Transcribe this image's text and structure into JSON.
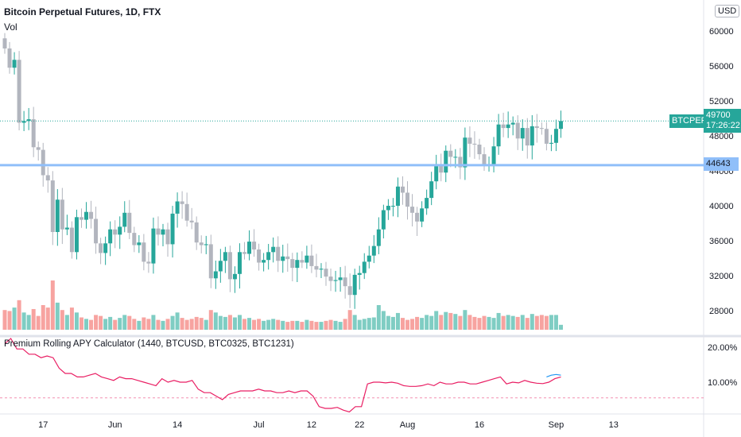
{
  "header": {
    "title": "Bitcoin Perpetual Futures, 1D, FTX",
    "volume_label": "Vol",
    "currency": "USD"
  },
  "indicator": {
    "title": "Premium Rolling APY Calculator (1440, BTCUSD, BTC0325, BTC1231)"
  },
  "last_price": {
    "symbol": "BTCPERP",
    "price": "49700",
    "countdown": "17:26:22"
  },
  "hline": {
    "price": 44643,
    "label": "44643"
  },
  "colors": {
    "up": "#26a69a",
    "down": "#b2b5be",
    "vol_up": "#7fcdc3",
    "vol_down": "#f7a3a0",
    "apy": "#e91e63",
    "hline": "#90bff9"
  },
  "chart_data": {
    "type": "candlestick",
    "title": "Bitcoin Perpetual Futures, 1D, FTX",
    "start": "2021-05-09",
    "closes": [
      58000,
      55800,
      56700,
      49500,
      49700,
      49900,
      46700,
      46400,
      43500,
      42900,
      37000,
      40700,
      37300,
      37500,
      34700,
      38700,
      38400,
      39300,
      38500,
      35700,
      34600,
      35700,
      37300,
      36700,
      37600,
      39200,
      36900,
      35500,
      35800,
      33600,
      33400,
      37400,
      36700,
      37300,
      35600,
      39100,
      40500,
      40200,
      38300,
      38100,
      35800,
      35500,
      35600,
      31700,
      32500,
      33700,
      34700,
      31600,
      32200,
      34700,
      34500,
      35900,
      35000,
      33500,
      33800,
      34700,
      35300,
      33700,
      34200,
      33900,
      32900,
      33800,
      33500,
      34300,
      33100,
      32700,
      32800,
      31900,
      31400,
      31500,
      31800,
      30800,
      29800,
      32100,
      32300,
      33600,
      34300,
      35400,
      37300,
      39500,
      40000,
      40000,
      42200,
      41500,
      39900,
      39200,
      38200,
      39700,
      40900,
      42800,
      44600,
      43800,
      46300,
      45600,
      45600,
      44400,
      47800,
      47100,
      47000,
      45900,
      44700,
      44700,
      46800,
      49300,
      48900,
      49300,
      49500,
      47700,
      48900,
      46900,
      49100,
      48900,
      48800,
      47100,
      47200,
      48800,
      49700
    ],
    "volumes": [
      40,
      38,
      45,
      60,
      35,
      30,
      42,
      28,
      50,
      45,
      100,
      55,
      40,
      30,
      45,
      35,
      25,
      22,
      20,
      30,
      28,
      22,
      26,
      20,
      24,
      30,
      28,
      22,
      18,
      25,
      22,
      30,
      20,
      18,
      22,
      28,
      35,
      24,
      20,
      22,
      26,
      24,
      20,
      40,
      35,
      28,
      26,
      30,
      25,
      30,
      22,
      24,
      20,
      22,
      18,
      20,
      22,
      20,
      18,
      16,
      18,
      18,
      16,
      20,
      18,
      16,
      16,
      18,
      20,
      18,
      16,
      22,
      40,
      30,
      20,
      22,
      24,
      25,
      50,
      38,
      28,
      26,
      34,
      24,
      20,
      22,
      26,
      24,
      30,
      28,
      38,
      30,
      36,
      34,
      32,
      28,
      40,
      30,
      26,
      24,
      28,
      26,
      24,
      34,
      28,
      30,
      28,
      26,
      30,
      24,
      32,
      28,
      30,
      28,
      30,
      30,
      10
    ],
    "y_ticks": [
      60000,
      56000,
      52000,
      48000,
      44000,
      40000,
      36000,
      32000,
      28000
    ],
    "x_ticks": [
      {
        "label": "17",
        "date": "2021-05-17"
      },
      {
        "label": "Jun",
        "date": "2021-06-01"
      },
      {
        "label": "14",
        "date": "2021-06-14"
      },
      {
        "label": "Jul",
        "date": "2021-07-01"
      },
      {
        "label": "12",
        "date": "2021-07-12"
      },
      {
        "label": "22",
        "date": "2021-07-22"
      },
      {
        "label": "Aug",
        "date": "2021-08-01"
      },
      {
        "label": "16",
        "date": "2021-08-16"
      },
      {
        "label": "Sep",
        "date": "2021-09-01"
      },
      {
        "label": "13",
        "date": "2021-09-13"
      }
    ],
    "apy": {
      "unit": "%",
      "ticks": [
        "20.00%",
        "10.00%"
      ],
      "tick_values": [
        20,
        10
      ],
      "reference": 5.5,
      "values": [
        21,
        22.5,
        19.5,
        19.5,
        18,
        18,
        17,
        17.5,
        17,
        14,
        12.5,
        12.5,
        11.5,
        11.5,
        12,
        12.5,
        11.5,
        11,
        10.5,
        11.5,
        11,
        11,
        10.5,
        10,
        9.5,
        9,
        11,
        10,
        10.5,
        10,
        10,
        10.5,
        8,
        7,
        7,
        6,
        5,
        6.5,
        7,
        7.5,
        7.5,
        7.5,
        8,
        7.5,
        7.5,
        7,
        7,
        7.5,
        7,
        7.5,
        7.5,
        6,
        3,
        2.5,
        2.5,
        2.8,
        2,
        1.5,
        3,
        3,
        9.5,
        10,
        10,
        9.8,
        10,
        9.7,
        9,
        8.8,
        8.8,
        9,
        9.5,
        9,
        10,
        9.5,
        9.5,
        10,
        10,
        9.5,
        9.5,
        10,
        10.5,
        11,
        11.5,
        9.5,
        10,
        9.8,
        10.5,
        10,
        9.7,
        9.6,
        10,
        11,
        11.5
      ],
      "secondary": [
        11.5,
        12,
        12.2,
        12
      ]
    }
  }
}
